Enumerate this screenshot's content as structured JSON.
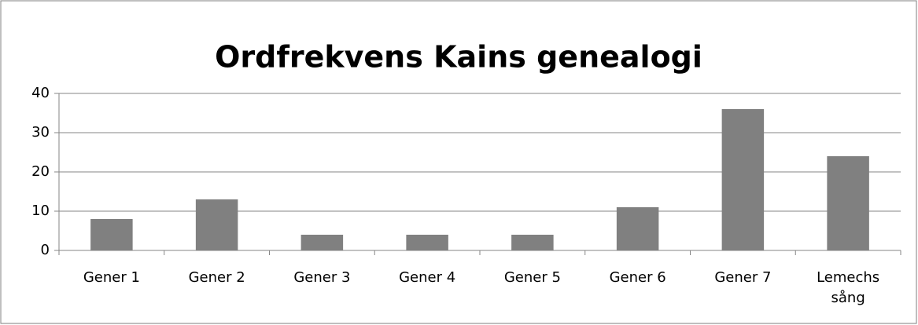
{
  "chart_data": {
    "type": "bar",
    "title": "Ordfrekvens Kains genealogi",
    "categories": [
      "Gener 1",
      "Gener 2",
      "Gener 3",
      "Gener 4",
      "Gener 5",
      "Gener 6",
      "Gener 7",
      "Lemechs sång"
    ],
    "values": [
      8,
      13,
      4,
      4,
      4,
      11,
      36,
      24
    ],
    "color": "#808080",
    "ylim": [
      0,
      40
    ],
    "yticks": [
      0,
      10,
      20,
      30,
      40
    ],
    "grid": true
  }
}
